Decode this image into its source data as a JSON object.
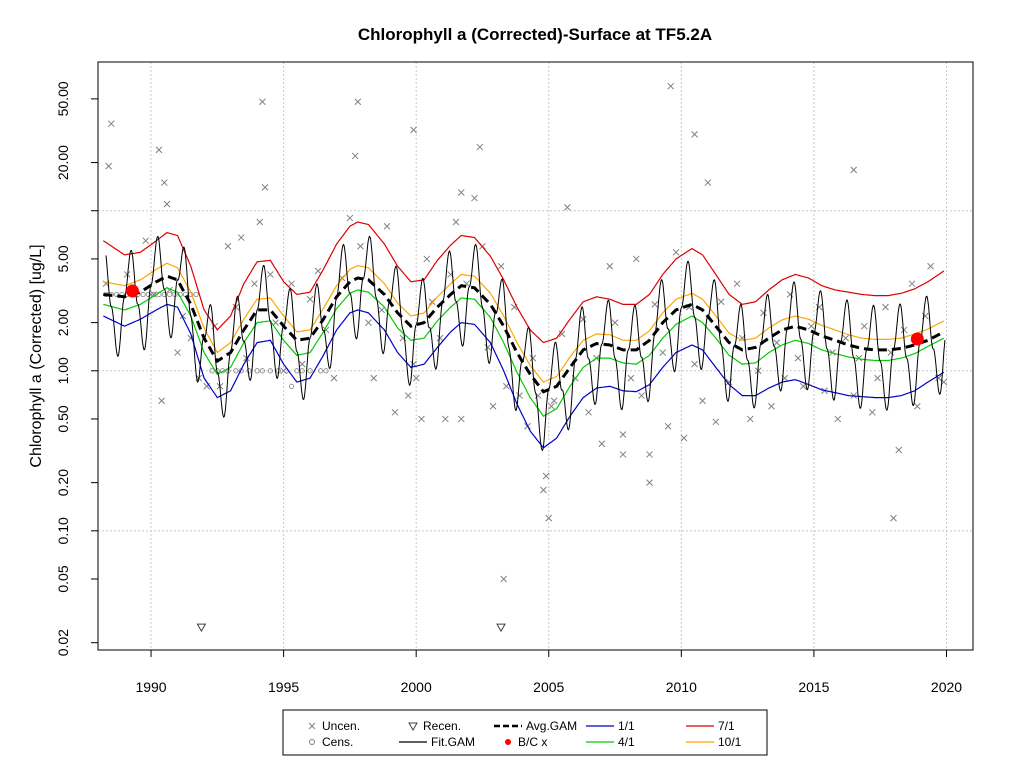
{
  "chart_data": {
    "type": "scatter",
    "title": "Chlorophyll a (Corrected)-Surface at TF5.2A",
    "xlabel": "",
    "ylabel": "Chlorophyll a (Corrected) [ug/L]",
    "y_scale": "log",
    "xlim": [
      1988.0,
      2021.0
    ],
    "ylim": [
      0.018,
      85
    ],
    "x_ticks": [
      1990,
      1995,
      2000,
      2005,
      2010,
      2015,
      2020
    ],
    "x_tick_labels": [
      "1990",
      "1995",
      "2000",
      "2005",
      "2010",
      "2015",
      "2020"
    ],
    "y_ticks": [
      0.02,
      0.05,
      0.1,
      0.2,
      0.5,
      1,
      2,
      5,
      10,
      20,
      50
    ],
    "y_tick_labels": [
      "0.02",
      "0.05",
      "0.10",
      "0.20",
      "0.50",
      "1.00",
      "2.00",
      "5.00",
      "",
      "20.00",
      "50.00"
    ],
    "grid": true,
    "legend_position": "bottom",
    "legend": [
      {
        "label": "Uncen.",
        "symbol": "x",
        "color": "#808080"
      },
      {
        "label": "Cens.",
        "symbol": "circle",
        "color": "#808080"
      },
      {
        "label": "Recen.",
        "symbol": "triangle-down",
        "color": "#404040"
      },
      {
        "label": "Fit.GAM",
        "symbol": "line",
        "color": "#000000"
      },
      {
        "label": "Avg.GAM",
        "symbol": "dashed-line",
        "color": "#000000"
      },
      {
        "label": "B/C x",
        "symbol": "dot",
        "color": "#ff0000"
      },
      {
        "label": "1/1",
        "symbol": "line",
        "color": "#0000cc"
      },
      {
        "label": "4/1",
        "symbol": "line",
        "color": "#00cc00"
      },
      {
        "label": "7/1",
        "symbol": "line",
        "color": "#dd0000"
      },
      {
        "label": "10/1",
        "symbol": "line",
        "color": "#ffa500"
      }
    ],
    "colors": {
      "avg": "#000000",
      "d11": "#0000cc",
      "d41": "#00cc00",
      "d71": "#dd0000",
      "d101": "#ffa500",
      "bc": "#ff0000",
      "points": "#808080"
    },
    "avg_gam": {
      "x": [
        1988.2,
        1989.0,
        1989.6,
        1990.2,
        1990.6,
        1991.0,
        1991.5,
        1992.0,
        1992.5,
        1993.0,
        1993.5,
        1994.0,
        1994.5,
        1995.0,
        1995.5,
        1996.0,
        1996.5,
        1997.0,
        1997.5,
        1997.8,
        1998.2,
        1998.8,
        1999.3,
        1999.8,
        2000.3,
        2000.8,
        2001.3,
        2001.7,
        2002.2,
        2002.8,
        2003.3,
        2003.8,
        2004.3,
        2004.8,
        2005.3,
        2005.8,
        2006.3,
        2006.8,
        2007.3,
        2007.8,
        2008.3,
        2008.8,
        2009.3,
        2009.8,
        2010.4,
        2010.8,
        2011.3,
        2011.8,
        2012.3,
        2012.8,
        2013.3,
        2013.8,
        2014.3,
        2014.8,
        2015.3,
        2015.8,
        2016.3,
        2016.8,
        2017.3,
        2017.8,
        2018.3,
        2018.8,
        2019.3,
        2019.9
      ],
      "y": [
        3.0,
        2.9,
        3.1,
        3.6,
        3.9,
        3.7,
        2.6,
        1.6,
        1.15,
        1.3,
        1.8,
        2.4,
        2.4,
        1.9,
        1.55,
        1.6,
        2.1,
        2.9,
        3.6,
        3.8,
        3.7,
        3.0,
        2.3,
        1.9,
        2.0,
        2.5,
        3.0,
        3.4,
        3.3,
        2.6,
        1.9,
        1.3,
        0.95,
        0.74,
        0.8,
        1.05,
        1.35,
        1.48,
        1.45,
        1.35,
        1.35,
        1.55,
        2.0,
        2.4,
        2.6,
        2.4,
        1.9,
        1.5,
        1.35,
        1.4,
        1.6,
        1.8,
        1.9,
        1.8,
        1.65,
        1.55,
        1.45,
        1.38,
        1.35,
        1.35,
        1.38,
        1.45,
        1.55,
        1.75
      ]
    },
    "fit_gam": {
      "seasonal_factors": [
        1.0,
        1.9,
        0.85,
        0.42
      ],
      "start": 1988.3,
      "end": 2019.95
    },
    "bc_points": [
      {
        "x": 1989.3,
        "y": 3.15
      },
      {
        "x": 2018.9,
        "y": 1.58
      }
    ],
    "uncensored": {
      "x": [
        1988.4,
        1988.5,
        1989.1,
        1989.4,
        1989.8,
        1990.1,
        1990.3,
        1990.5,
        1990.6,
        1990.7,
        1991.2,
        1991.5,
        1991.8,
        1992.1,
        1992.4,
        1992.6,
        1992.9,
        1993.2,
        1993.4,
        1993.6,
        1993.9,
        1994.1,
        1994.3,
        1994.5,
        1994.7,
        1995.0,
        1995.3,
        1995.7,
        1996.0,
        1996.3,
        1996.6,
        1996.9,
        1997.2,
        1997.5,
        1997.7,
        1997.9,
        1998.2,
        1998.4,
        1998.7,
        1998.9,
        1999.2,
        1999.5,
        1999.7,
        1999.9,
        2000.2,
        2000.4,
        2000.6,
        2000.9,
        2001.1,
        2001.3,
        2001.5,
        2001.7,
        2001.9,
        2002.2,
        2002.5,
        2002.7,
        2002.9,
        2003.2,
        2003.4,
        2003.7,
        2003.9,
        2004.2,
        2004.4,
        2004.6,
        2004.8,
        2005.0,
        2005.2,
        2005.5,
        2005.7,
        2006.0,
        2006.3,
        2006.5,
        2006.8,
        2007.0,
        2007.3,
        2007.5,
        2007.8,
        2008.1,
        2008.3,
        2008.5,
        2008.8,
        2009.0,
        2009.3,
        2009.5,
        2009.8,
        2010.1,
        2010.3,
        2010.5,
        2010.8,
        2011.0,
        2011.3,
        2011.5,
        2011.8,
        2012.1,
        2012.3,
        2012.6,
        2012.9,
        2013.1,
        2013.4,
        2013.6,
        2013.9,
        2014.1,
        2014.4,
        2014.6,
        2014.9,
        2015.2,
        2015.4,
        2015.7,
        2015.9,
        2016.2,
        2016.5,
        2016.7,
        2016.9,
        2017.2,
        2017.4,
        2017.7,
        2017.9,
        2018.2,
        2018.4,
        2018.7,
        2018.9,
        2019.2,
        2019.4,
        2019.7,
        2019.9,
        1988.3,
        1990.4,
        1991.0,
        1994.2,
        1997.8,
        1999.9,
        2003.3,
        2009.6,
        2008.8,
        2010.5,
        2016.5,
        2018.0,
        2004.9,
        2005.1,
        2007.8,
        2000.0,
        2001.7,
        2002.4
      ],
      "y": [
        19.0,
        35.0,
        4.0,
        3.0,
        6.5,
        3.0,
        24.0,
        15.0,
        11.0,
        3.2,
        2.2,
        1.6,
        0.9,
        0.8,
        1.9,
        0.8,
        6.0,
        2.5,
        6.8,
        1.2,
        3.5,
        8.5,
        14.0,
        4.0,
        2.0,
        1.0,
        3.5,
        1.1,
        2.8,
        4.2,
        1.8,
        0.9,
        3.8,
        9.0,
        22.0,
        6.0,
        2.0,
        0.9,
        2.4,
        8.0,
        0.55,
        1.6,
        0.7,
        1.1,
        0.5,
        5.0,
        2.7,
        1.6,
        0.5,
        4.0,
        8.5,
        13.0,
        3.5,
        12.0,
        6.0,
        1.4,
        0.6,
        4.5,
        0.8,
        2.5,
        0.7,
        0.45,
        1.2,
        0.7,
        0.18,
        0.12,
        0.65,
        1.7,
        10.5,
        0.9,
        2.1,
        0.55,
        1.2,
        0.35,
        4.5,
        2.0,
        0.4,
        0.9,
        5.0,
        0.7,
        0.3,
        2.6,
        1.3,
        0.45,
        5.5,
        0.38,
        2.5,
        1.1,
        0.65,
        15.0,
        0.48,
        2.7,
        0.85,
        3.5,
        1.6,
        0.5,
        1.0,
        2.3,
        0.6,
        1.5,
        0.9,
        3.0,
        1.2,
        0.8,
        1.9,
        2.5,
        0.75,
        1.3,
        0.5,
        1.6,
        0.7,
        1.2,
        1.9,
        0.55,
        0.9,
        2.5,
        1.3,
        0.32,
        1.8,
        3.5,
        0.6,
        2.2,
        4.5,
        0.9,
        0.85,
        3.5,
        0.65,
        1.3,
        48.0,
        48.0,
        32.0,
        0.05,
        60.0,
        0.2,
        30.0,
        18.0,
        0.12,
        0.22,
        0.6,
        0.3,
        0.9,
        0.5,
        25.0
      ]
    },
    "censored": {
      "x": [
        1988.3,
        1988.5,
        1988.7,
        1988.9,
        1989.1,
        1989.3,
        1989.5,
        1989.7,
        1989.9,
        1990.1,
        1990.3,
        1990.5,
        1990.7,
        1990.9,
        1991.1,
        1991.3,
        1991.5,
        1991.7,
        1992.3,
        1992.5,
        1992.7,
        1992.9,
        1993.2,
        1993.4,
        1993.7,
        1994.0,
        1994.2,
        1994.5,
        1994.8,
        1995.1,
        1995.3,
        1995.5,
        1995.7,
        1996.0,
        1996.4,
        1996.6
      ],
      "y": [
        3.0,
        3.0,
        3.0,
        3.0,
        3.0,
        3.0,
        3.0,
        3.0,
        3.0,
        3.0,
        3.0,
        3.0,
        3.0,
        3.0,
        3.0,
        3.0,
        3.0,
        3.0,
        1.0,
        1.0,
        1.0,
        1.0,
        1.0,
        1.0,
        1.0,
        1.0,
        1.0,
        1.0,
        1.0,
        1.0,
        0.8,
        1.0,
        1.0,
        1.0,
        1.0,
        1.0
      ]
    },
    "recensored": {
      "x": [
        1991.9,
        2003.2
      ],
      "y": [
        0.025,
        0.025
      ]
    },
    "date_curves": {
      "d11": {
        "x": [
          1988.2,
          1989.0,
          1989.6,
          1990.2,
          1990.6,
          1991.0,
          1991.5,
          1992.0,
          1992.5,
          1993.0,
          1993.5,
          1994.0,
          1994.5,
          1995.0,
          1995.5,
          1996.0,
          1996.5,
          1997.0,
          1997.5,
          1997.8,
          1998.2,
          1998.8,
          1999.3,
          1999.8,
          2000.3,
          2000.8,
          2001.3,
          2001.7,
          2002.2,
          2002.8,
          2003.3,
          2003.8,
          2004.3,
          2004.8,
          2005.3,
          2005.8,
          2006.3,
          2006.8,
          2007.3,
          2007.8,
          2008.3,
          2008.8,
          2009.3,
          2009.8,
          2010.4,
          2010.8,
          2011.3,
          2011.8,
          2012.3,
          2012.8,
          2013.3,
          2013.8,
          2014.3,
          2014.8,
          2015.3,
          2015.8,
          2016.3,
          2016.8,
          2017.3,
          2017.8,
          2018.3,
          2018.8,
          2019.3,
          2019.9
        ],
        "y": [
          2.2,
          1.9,
          2.1,
          2.4,
          2.6,
          2.5,
          1.7,
          0.9,
          0.68,
          0.75,
          1.1,
          1.5,
          1.55,
          1.1,
          0.85,
          0.9,
          1.25,
          1.8,
          2.3,
          2.4,
          2.3,
          1.8,
          1.3,
          1.05,
          1.1,
          1.4,
          1.75,
          2.0,
          1.95,
          1.5,
          1.0,
          0.62,
          0.42,
          0.33,
          0.38,
          0.52,
          0.68,
          0.78,
          0.8,
          0.75,
          0.74,
          0.82,
          1.05,
          1.3,
          1.45,
          1.35,
          1.05,
          0.82,
          0.7,
          0.7,
          0.78,
          0.85,
          0.88,
          0.82,
          0.76,
          0.73,
          0.7,
          0.69,
          0.68,
          0.68,
          0.7,
          0.75,
          0.85,
          0.98
        ]
      },
      "d41": {
        "x": [
          1988.2,
          1989.0,
          1989.6,
          1990.2,
          1990.6,
          1991.0,
          1991.5,
          1992.0,
          1992.5,
          1993.0,
          1993.5,
          1994.0,
          1994.5,
          1995.0,
          1995.5,
          1996.0,
          1996.5,
          1997.0,
          1997.5,
          1997.8,
          1998.2,
          1998.8,
          1999.3,
          1999.8,
          2000.3,
          2000.8,
          2001.3,
          2001.7,
          2002.2,
          2002.8,
          2003.3,
          2003.8,
          2004.3,
          2004.8,
          2005.3,
          2005.8,
          2006.3,
          2006.8,
          2007.3,
          2007.8,
          2008.3,
          2008.8,
          2009.3,
          2009.8,
          2010.4,
          2010.8,
          2011.3,
          2011.8,
          2012.3,
          2012.8,
          2013.3,
          2013.8,
          2014.3,
          2014.8,
          2015.3,
          2015.8,
          2016.3,
          2016.8,
          2017.3,
          2017.8,
          2018.3,
          2018.8,
          2019.3,
          2019.9
        ],
        "y": [
          2.6,
          2.4,
          2.6,
          3.0,
          3.3,
          3.1,
          2.2,
          1.3,
          0.95,
          1.05,
          1.5,
          2.0,
          2.05,
          1.55,
          1.25,
          1.3,
          1.75,
          2.45,
          3.05,
          3.2,
          3.1,
          2.5,
          1.85,
          1.55,
          1.6,
          2.05,
          2.5,
          2.85,
          2.8,
          2.15,
          1.5,
          0.98,
          0.68,
          0.52,
          0.58,
          0.8,
          1.05,
          1.2,
          1.2,
          1.12,
          1.1,
          1.25,
          1.6,
          1.95,
          2.2,
          2.0,
          1.6,
          1.25,
          1.1,
          1.12,
          1.3,
          1.45,
          1.55,
          1.48,
          1.35,
          1.28,
          1.22,
          1.18,
          1.16,
          1.16,
          1.2,
          1.28,
          1.42,
          1.6
        ]
      },
      "d71": {
        "x": [
          1988.2,
          1989.0,
          1989.6,
          1990.2,
          1990.6,
          1991.0,
          1991.5,
          1992.0,
          1992.5,
          1993.0,
          1993.5,
          1994.0,
          1994.5,
          1995.0,
          1995.5,
          1996.0,
          1996.5,
          1997.0,
          1997.5,
          1997.8,
          1998.2,
          1998.8,
          1999.3,
          1999.8,
          2000.3,
          2000.8,
          2001.3,
          2001.7,
          2002.2,
          2002.8,
          2003.3,
          2003.8,
          2004.3,
          2004.8,
          2005.3,
          2005.8,
          2006.3,
          2006.8,
          2007.3,
          2007.8,
          2008.3,
          2008.8,
          2009.3,
          2009.8,
          2010.4,
          2010.8,
          2011.3,
          2011.8,
          2012.3,
          2012.8,
          2013.3,
          2013.8,
          2014.3,
          2014.8,
          2015.3,
          2015.8,
          2016.3,
          2016.8,
          2017.3,
          2017.8,
          2018.3,
          2018.8,
          2019.3,
          2019.9
        ],
        "y": [
          6.5,
          5.3,
          5.5,
          6.5,
          7.3,
          7.0,
          4.5,
          2.4,
          1.8,
          2.2,
          3.5,
          4.8,
          4.9,
          3.6,
          3.0,
          3.1,
          4.3,
          6.2,
          8.0,
          8.5,
          8.2,
          6.2,
          4.5,
          3.6,
          3.7,
          4.9,
          6.1,
          7.0,
          6.8,
          5.2,
          3.7,
          2.5,
          1.8,
          1.5,
          1.6,
          2.1,
          2.7,
          2.9,
          2.8,
          2.6,
          2.6,
          3.0,
          4.0,
          5.0,
          5.8,
          5.3,
          4.0,
          3.0,
          2.6,
          2.7,
          3.2,
          3.7,
          4.0,
          3.8,
          3.4,
          3.2,
          3.1,
          3.0,
          2.95,
          2.95,
          3.05,
          3.25,
          3.6,
          4.2
        ]
      },
      "d101": {
        "x": [
          1988.2,
          1989.0,
          1989.6,
          1990.2,
          1990.6,
          1991.0,
          1991.5,
          1992.0,
          1992.5,
          1993.0,
          1993.5,
          1994.0,
          1994.5,
          1995.0,
          1995.5,
          1996.0,
          1996.5,
          1997.0,
          1997.5,
          1997.8,
          1998.2,
          1998.8,
          1999.3,
          1999.8,
          2000.3,
          2000.8,
          2001.3,
          2001.7,
          2002.2,
          2002.8,
          2003.3,
          2003.8,
          2004.3,
          2004.8,
          2005.3,
          2005.8,
          2006.3,
          2006.8,
          2007.3,
          2007.8,
          2008.3,
          2008.8,
          2009.3,
          2009.8,
          2010.4,
          2010.8,
          2011.3,
          2011.8,
          2012.3,
          2012.8,
          2013.3,
          2013.8,
          2014.3,
          2014.8,
          2015.3,
          2015.8,
          2016.3,
          2016.8,
          2017.3,
          2017.8,
          2018.3,
          2018.8,
          2019.3,
          2019.9
        ],
        "y": [
          3.6,
          3.4,
          3.7,
          4.3,
          4.7,
          4.4,
          3.1,
          1.85,
          1.3,
          1.5,
          2.1,
          2.8,
          2.85,
          2.2,
          1.75,
          1.8,
          2.45,
          3.4,
          4.3,
          4.55,
          4.4,
          3.5,
          2.65,
          2.2,
          2.3,
          2.9,
          3.5,
          4.0,
          3.9,
          3.05,
          2.2,
          1.5,
          1.08,
          0.85,
          0.92,
          1.22,
          1.55,
          1.7,
          1.68,
          1.55,
          1.55,
          1.78,
          2.3,
          2.8,
          3.05,
          2.8,
          2.2,
          1.72,
          1.55,
          1.6,
          1.85,
          2.08,
          2.2,
          2.1,
          1.92,
          1.8,
          1.68,
          1.6,
          1.57,
          1.57,
          1.6,
          1.7,
          1.82,
          2.05
        ]
      }
    }
  }
}
